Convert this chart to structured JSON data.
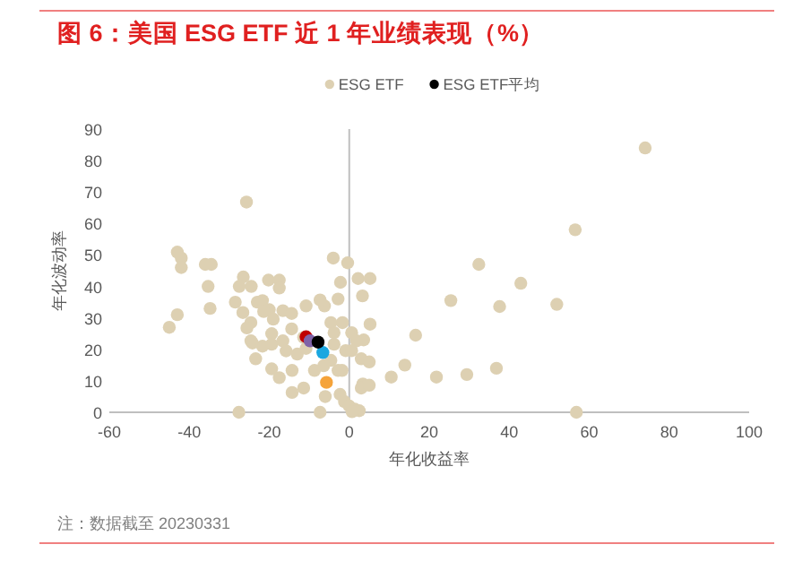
{
  "chart_data": {
    "type": "scatter",
    "title": "图 6：美国 ESG ETF 近 1 年业绩表现（%）",
    "xlabel": "年化收益率",
    "ylabel": "年化波动率",
    "annotations": [
      "注：数据截至 20230331"
    ],
    "xlim": [
      -60,
      100
    ],
    "ylim": [
      0,
      90
    ],
    "xticks": [
      -60,
      -40,
      -20,
      0,
      20,
      40,
      60,
      80,
      100
    ],
    "yticks": [
      0,
      10,
      20,
      30,
      40,
      50,
      60,
      70,
      80,
      90
    ],
    "grid": false,
    "ref_lines": [
      {
        "axis": "x",
        "value": 0,
        "color": "#bfbfbf"
      }
    ],
    "legend": "top",
    "marker": "circle",
    "series": [
      {
        "name": "ESG ETF",
        "color": "#ddd0b2",
        "x": [
          74,
          56.5,
          32.4,
          42.9,
          25.4,
          37.6,
          51.9,
          16.6,
          13.9,
          10.5,
          21.8,
          29.4,
          36.8,
          56.8,
          2.2,
          5.2,
          3.3,
          5.2,
          3.6,
          3.4,
          2.5,
          -25.7,
          -43,
          -42,
          -42,
          -36,
          -34.5,
          -35.3,
          -34.8,
          -43,
          -45,
          -26.5,
          -27.5,
          -24.5,
          -28.5,
          -20.2,
          -17.5,
          -17.5,
          -26.6,
          -24.6,
          -23,
          -21.7,
          -20,
          -19,
          -24.6,
          -23.4,
          -19.4,
          -17.5,
          -14.3,
          -11.4,
          -14.3,
          -27.6,
          -7.3,
          -4.6,
          -6.4,
          -1.8,
          -6,
          -2.3,
          -1.2,
          0,
          1.4,
          0.7,
          -4.6,
          -1.7,
          -6.2,
          -7.3,
          -10.8,
          -2.8,
          -0.4,
          -4,
          -2.2,
          1.8,
          3,
          5,
          3,
          5,
          -19.4,
          -16.6,
          -14.4,
          -11.4,
          -15.8,
          -13,
          -10.8,
          -21.4,
          -25.6,
          -24.2,
          -21.7,
          -19.4,
          -3.8,
          -0.9,
          0.6,
          -3.8,
          0.6,
          -2.8,
          -8.7,
          -16.6,
          -14.4
        ],
        "values": [
          84,
          58,
          47,
          41,
          35.5,
          33.6,
          34.3,
          24.5,
          15,
          11.2,
          11.2,
          12,
          14,
          0,
          42.5,
          42.5,
          37,
          28,
          23,
          9,
          0.5,
          66.8,
          50.9,
          49,
          46,
          47,
          47,
          40,
          33,
          31,
          27,
          43,
          40,
          40,
          35,
          42,
          42,
          39.5,
          31.7,
          28.5,
          35,
          35.5,
          32.6,
          29.6,
          22.7,
          17,
          13.8,
          11,
          13.3,
          7.7,
          6.3,
          0,
          0,
          16.5,
          14.8,
          13.3,
          5,
          5.7,
          3.4,
          2,
          1,
          0.2,
          28.5,
          28.5,
          33.8,
          35.7,
          33.8,
          36,
          47.5,
          49,
          41.3,
          22.7,
          17,
          16,
          7.7,
          8.6,
          25,
          22.7,
          26.5,
          23.8,
          19.5,
          18.5,
          20.3,
          32,
          26.8,
          22,
          21,
          21.6,
          21.6,
          19.6,
          25.3,
          25.3,
          19.6,
          13.3,
          13.3,
          32.3,
          31.4
        ]
      },
      {
        "color": "#c00000",
        "x": [
          -10.8
        ],
        "values": [
          24
        ]
      },
      {
        "color": "#1aa7e0",
        "x": [
          -6.6
        ],
        "values": [
          19
        ]
      },
      {
        "color": "#f5a33a",
        "x": [
          -5.7
        ],
        "values": [
          9.5
        ]
      },
      {
        "color": "#7f63a8",
        "x": [
          -9.8
        ],
        "values": [
          22.7
        ]
      },
      {
        "name": "ESG ETF平均",
        "color": "#000000",
        "x": [
          -7.8
        ],
        "values": [
          22.3
        ]
      }
    ]
  }
}
